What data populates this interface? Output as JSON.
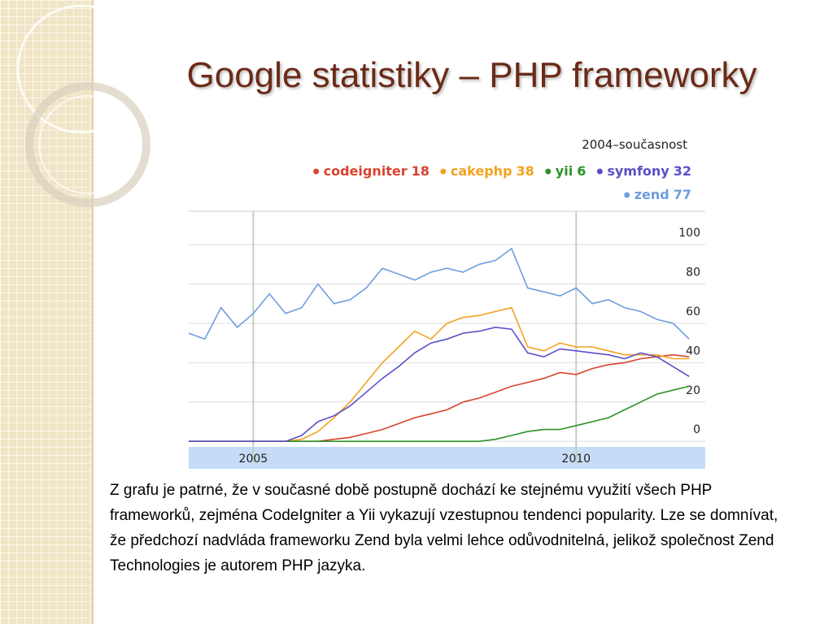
{
  "title": "Google statistiky – PHP frameworky",
  "chart_data": {
    "type": "line",
    "subtitle": "2004–současnost",
    "x": [
      2004,
      2004.25,
      2004.5,
      2004.75,
      2005,
      2005.25,
      2005.5,
      2005.75,
      2006,
      2006.25,
      2006.5,
      2006.75,
      2007,
      2007.25,
      2007.5,
      2007.75,
      2008,
      2008.25,
      2008.5,
      2008.75,
      2009,
      2009.25,
      2009.5,
      2009.75,
      2010,
      2010.25,
      2010.5,
      2010.75,
      2011,
      2011.25,
      2011.5,
      2011.75
    ],
    "xlim": [
      2004,
      2012
    ],
    "xticks": [
      2005,
      2010
    ],
    "ylim": [
      -2,
      117
    ],
    "yticks": [
      0,
      20,
      40,
      60,
      80,
      100
    ],
    "grid": true,
    "series": [
      {
        "name": "codeigniter",
        "average": 18,
        "color": "#d9432f",
        "values": [
          0,
          0,
          0,
          0,
          0,
          0,
          0,
          0,
          0,
          1,
          2,
          4,
          6,
          9,
          12,
          14,
          16,
          20,
          22,
          25,
          28,
          30,
          32,
          35,
          34,
          37,
          39,
          40,
          42,
          43,
          44,
          43
        ]
      },
      {
        "name": "cakephp",
        "average": 38,
        "color": "#f4a21f",
        "values": [
          0,
          0,
          0,
          0,
          0,
          0,
          0,
          1,
          5,
          12,
          20,
          30,
          40,
          48,
          56,
          52,
          60,
          63,
          64,
          66,
          68,
          48,
          46,
          50,
          48,
          48,
          46,
          44,
          44,
          44,
          42,
          42
        ]
      },
      {
        "name": "yii",
        "average": 6,
        "color": "#2a9327",
        "values": [
          0,
          0,
          0,
          0,
          0,
          0,
          0,
          0,
          0,
          0,
          0,
          0,
          0,
          0,
          0,
          0,
          0,
          0,
          0,
          1,
          3,
          5,
          6,
          6,
          8,
          10,
          12,
          16,
          20,
          24,
          26,
          28
        ]
      },
      {
        "name": "symfony",
        "average": 32,
        "color": "#5b4fc8",
        "values": [
          0,
          0,
          0,
          0,
          0,
          0,
          0,
          3,
          10,
          13,
          18,
          25,
          32,
          38,
          45,
          50,
          52,
          55,
          56,
          58,
          57,
          45,
          43,
          47,
          46,
          45,
          44,
          42,
          45,
          43,
          38,
          33
        ]
      },
      {
        "name": "zend",
        "average": 77,
        "color": "#6f9ee0",
        "values": [
          55,
          52,
          68,
          58,
          65,
          75,
          65,
          68,
          80,
          70,
          72,
          78,
          88,
          85,
          82,
          86,
          88,
          86,
          90,
          92,
          98,
          78,
          76,
          74,
          78,
          70,
          72,
          68,
          66,
          62,
          60,
          52
        ]
      }
    ]
  },
  "paragraph": "Z grafu je patrné, že v současné době postupně dochází ke stejnému využití všech PHP frameworků, zejména CodeIgniter a Yii vykazují vzestupnou tendenci popularity. Lze se domnívat, že předchozí nadvláda frameworku Zend byla velmi lehce odůvodnitelná, jelikož společnost Zend Technologies je autorem PHP jazyka."
}
